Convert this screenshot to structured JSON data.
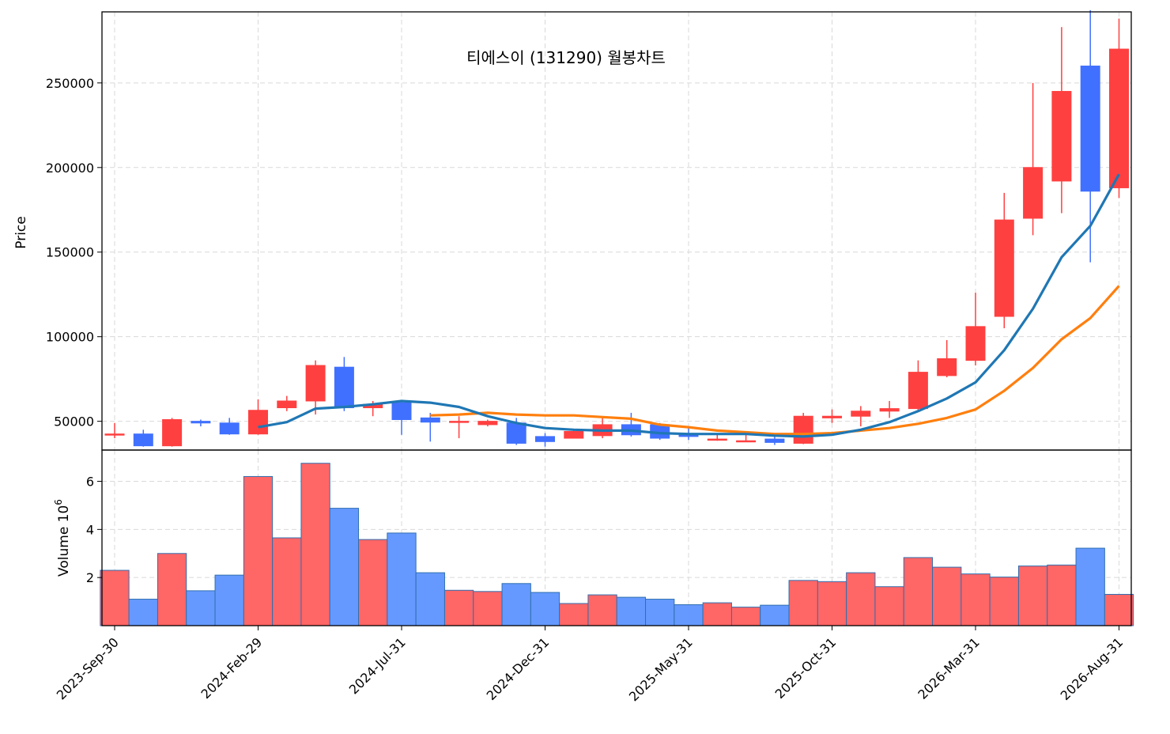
{
  "chart_data": {
    "type": "candlestick",
    "title": "티에스이 (131290) 월봉차트",
    "price_panel": {
      "ylabel": "Price",
      "ylim": [
        33000,
        292000
      ],
      "yticks": [
        50000,
        100000,
        150000,
        200000,
        250000
      ],
      "grid": true
    },
    "volume_panel": {
      "ylabel": "Volume  10",
      "ylabel_exponent": "6",
      "ylim": [
        0,
        7.3
      ],
      "yticks": [
        2,
        4,
        6
      ],
      "grid": true
    },
    "xtick_labels": [
      "2023-Sep-30",
      "2024-Feb-29",
      "2024-Jul-31",
      "2024-Dec-31",
      "2025-May-31",
      "2025-Oct-31",
      "2026-Mar-31",
      "2026-Aug-31"
    ],
    "xtick_index": [
      0,
      5,
      10,
      15,
      20,
      25,
      30,
      35
    ],
    "colors": {
      "up": "#ff4040",
      "down": "#4070ff",
      "up_volume": "#ff6666",
      "down_volume": "#6699ff",
      "ma_short": "#1f77b4",
      "ma_long": "#ff7f0e"
    },
    "months": [
      "2023-09",
      "2023-10",
      "2023-11",
      "2023-12",
      "2024-01",
      "2024-02",
      "2024-03",
      "2024-04",
      "2024-05",
      "2024-06",
      "2024-07",
      "2024-08",
      "2024-09",
      "2024-10",
      "2024-11",
      "2024-12",
      "2025-01",
      "2025-02",
      "2025-03",
      "2025-04",
      "2025-05",
      "2025-06",
      "2025-07",
      "2025-08",
      "2025-09",
      "2025-10",
      "2025-11",
      "2025-12",
      "2026-01",
      "2026-02",
      "2026-03",
      "2026-04",
      "2026-05",
      "2026-06",
      "2026-07",
      "2026-08"
    ],
    "open": [
      42000,
      42500,
      35500,
      50000,
      49000,
      42500,
      58000,
      62000,
      82000,
      58000,
      61000,
      52000,
      49500,
      48000,
      49000,
      41000,
      40000,
      41500,
      48000,
      48000,
      42000,
      39000,
      38500,
      39500,
      37000,
      52000,
      53000,
      56000,
      57500,
      77000,
      86000,
      112000,
      170000,
      192000,
      260000,
      188000
    ],
    "high": [
      49000,
      45000,
      52000,
      51000,
      52000,
      63000,
      65000,
      86000,
      88000,
      62000,
      62000,
      55000,
      53000,
      51000,
      52000,
      43000,
      45000,
      52000,
      55000,
      49000,
      47000,
      43000,
      42000,
      42000,
      55000,
      57000,
      59000,
      62000,
      86000,
      98000,
      126000,
      185000,
      250000,
      283000,
      293000,
      288000
    ],
    "low": [
      40000,
      35000,
      35000,
      47000,
      42000,
      42000,
      56000,
      54000,
      56000,
      53000,
      42000,
      38000,
      40000,
      47000,
      36000,
      35000,
      40000,
      40000,
      41000,
      39000,
      39000,
      38500,
      38000,
      36000,
      36500,
      49000,
      47000,
      52000,
      56000,
      76000,
      83000,
      105000,
      160000,
      173000,
      144000,
      182000
    ],
    "close": [
      42500,
      35500,
      51000,
      49000,
      42500,
      56500,
      62000,
      83000,
      58000,
      60000,
      51000,
      49500,
      50000,
      50000,
      37000,
      38000,
      44000,
      48000,
      42000,
      40000,
      41000,
      39500,
      38500,
      37500,
      53000,
      53000,
      56000,
      57500,
      79000,
      87000,
      106000,
      169000,
      200000,
      245000,
      186000,
      270000
    ],
    "volume_millions": [
      2.3,
      1.1,
      3.0,
      1.45,
      2.1,
      6.2,
      3.65,
      6.75,
      4.88,
      3.58,
      3.85,
      2.2,
      1.47,
      1.42,
      1.75,
      1.38,
      0.92,
      1.28,
      1.18,
      1.1,
      0.87,
      0.95,
      0.77,
      0.85,
      1.88,
      1.83,
      2.2,
      1.62,
      2.83,
      2.43,
      2.15,
      2.02,
      2.48,
      2.52,
      3.22,
      1.3
    ],
    "ma_short": [
      null,
      null,
      null,
      null,
      null,
      46500,
      49500,
      57500,
      58500,
      60000,
      62000,
      61000,
      58500,
      53000,
      49000,
      46000,
      45000,
      44500,
      44500,
      43000,
      42500,
      42500,
      42500,
      41500,
      41000,
      42000,
      45000,
      49500,
      56000,
      63500,
      73000,
      92000,
      116500,
      147000,
      165500,
      196000
    ],
    "ma_long": [
      null,
      null,
      null,
      null,
      null,
      null,
      null,
      null,
      null,
      null,
      null,
      53500,
      54000,
      55000,
      54000,
      53500,
      53500,
      52500,
      51500,
      48000,
      46500,
      44500,
      43500,
      42500,
      42500,
      43000,
      44500,
      46000,
      48500,
      52000,
      57000,
      68000,
      81500,
      98500,
      111000,
      130000
    ]
  }
}
